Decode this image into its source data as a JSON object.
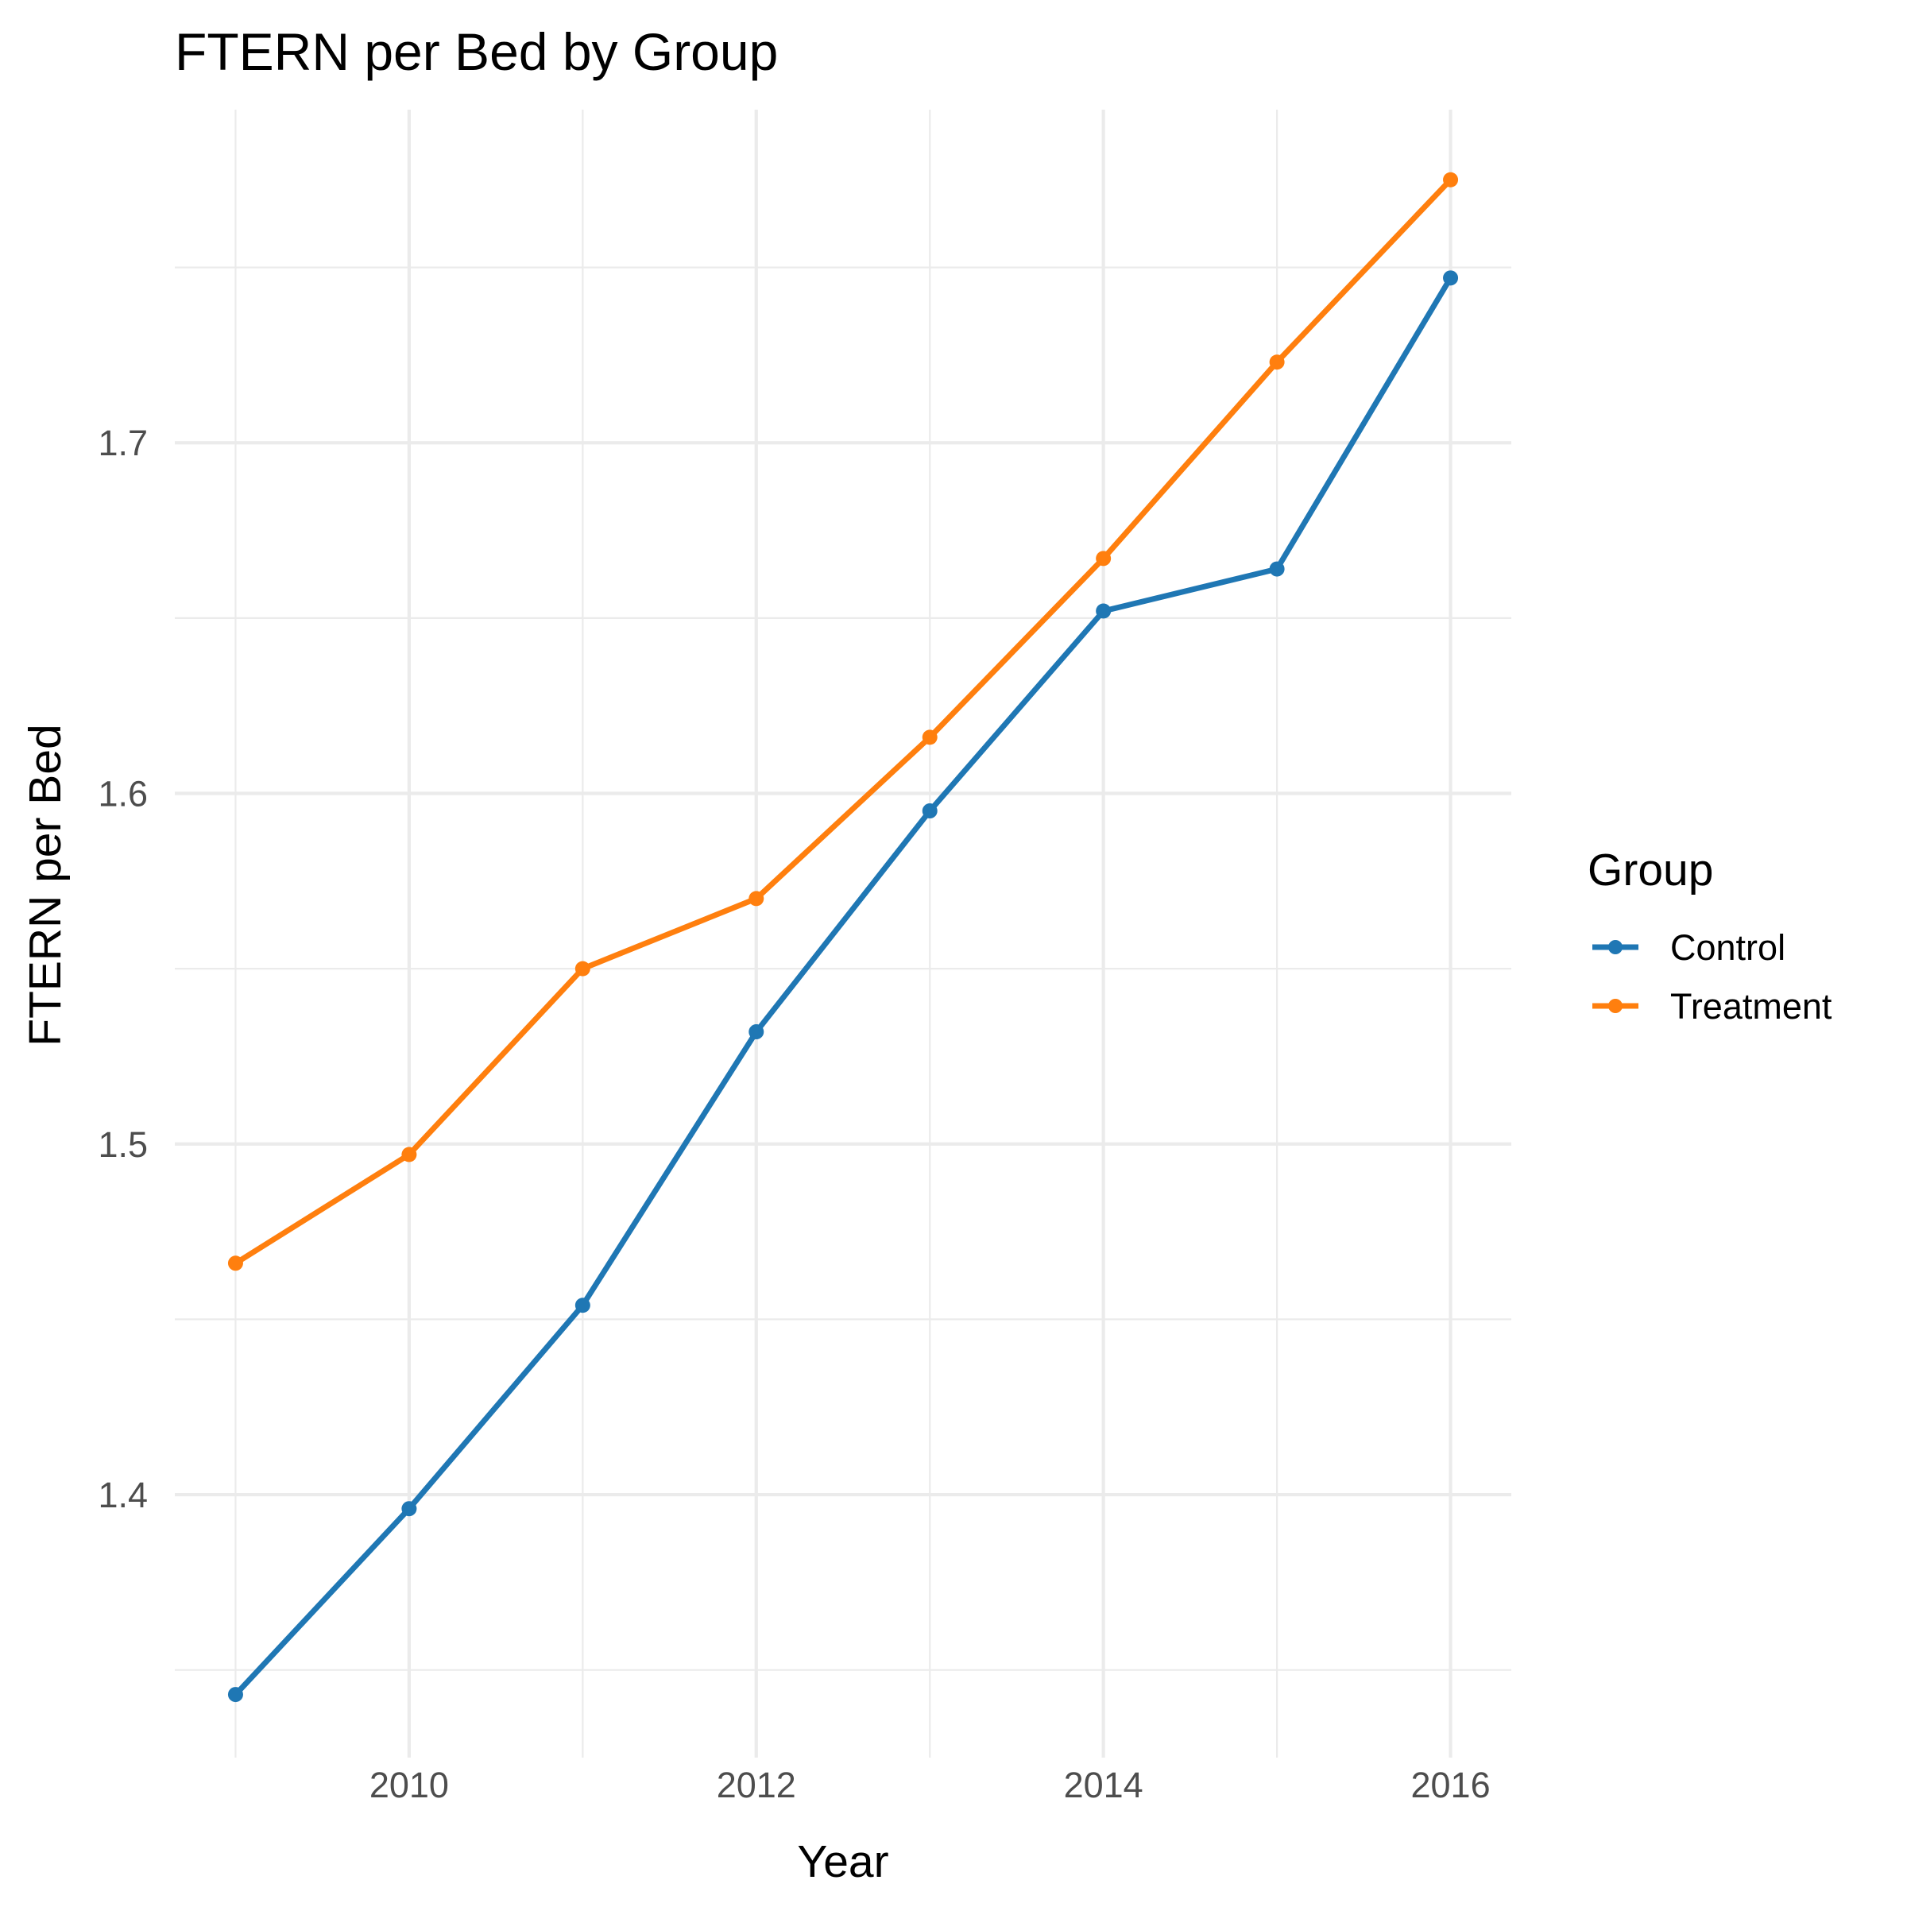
{
  "chart_data": {
    "type": "line",
    "title": "FTERN per Bed by Group",
    "xlabel": "Year",
    "ylabel": "FTERN per Bed",
    "x": [
      2009,
      2010,
      2011,
      2012,
      2013,
      2014,
      2015,
      2016
    ],
    "x_ticks": [
      "2010",
      "2012",
      "2014",
      "2016"
    ],
    "y_ticks": [
      "1.4",
      "1.5",
      "1.6",
      "1.7"
    ],
    "xlim": [
      2008.65,
      2016.35
    ],
    "ylim": [
      1.325,
      1.795
    ],
    "grid": true,
    "legend": {
      "title": "Group",
      "position": "right"
    },
    "series": [
      {
        "name": "Control",
        "color": "#1f77b4",
        "values": [
          1.343,
          1.396,
          1.454,
          1.532,
          1.595,
          1.652,
          1.664,
          1.747
        ]
      },
      {
        "name": "Treatment",
        "color": "#ff7f0e",
        "values": [
          1.466,
          1.497,
          1.55,
          1.57,
          1.616,
          1.667,
          1.723,
          1.775
        ]
      }
    ]
  }
}
